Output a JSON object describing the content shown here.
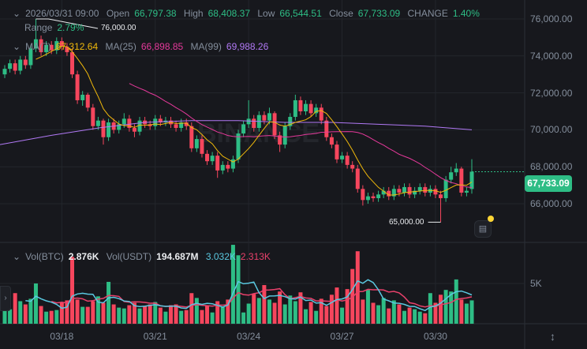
{
  "ohlc_header": {
    "datetime": "2026/03/31 09:00",
    "open_label": "Open",
    "open": "66,797.38",
    "high_label": "High",
    "high": "68,408.37",
    "low_label": "Low",
    "low": "66,544.51",
    "close_label": "Close",
    "close": "67,733.09",
    "change_label": "CHANGE",
    "change": "1.40%",
    "range_label": "Range",
    "range": "2.79%"
  },
  "ma_legend": {
    "ma7_label": "MA(7)",
    "ma7": "67,312.64",
    "ma25_label": "MA(25)",
    "ma25": "66,898.85",
    "ma99_label": "MA(99)",
    "ma99": "69,988.26"
  },
  "vol_legend": {
    "btc_label": "Vol(BTC)",
    "btc": "2.876K",
    "usdt_label": "Vol(USDT)",
    "usdt": "194.687M",
    "ma_short": "3.032K",
    "ma_long": "2.313K"
  },
  "current_price": "67,733.09",
  "high_marker": "76,000.00",
  "low_marker": "65,000.00",
  "watermark": "BINANCE",
  "colors": {
    "up": "#2ebd85",
    "down": "#f6465d",
    "ma7": "#f0b90b",
    "ma25": "#e6399b",
    "ma99": "#b179f5",
    "vol_ma_short": "#5ac8e0",
    "vol_ma_long": "#e8416b"
  },
  "chart_data": {
    "type": "candlestick",
    "interval": "4h",
    "price_ticks": [
      "76,000.00",
      "74,000.00",
      "72,000.00",
      "70,000.00",
      "68,000.00",
      "66,000.00"
    ],
    "price_tick_values": [
      76000,
      74000,
      72000,
      70000,
      68000,
      66000
    ],
    "volume_ticks": [
      "5K"
    ],
    "volume_tick_values": [
      5
    ],
    "time_ticks": [
      "03/18",
      "03/21",
      "03/24",
      "03/27",
      "03/30"
    ],
    "time_tick_candle_index": [
      11,
      29,
      47,
      65,
      83
    ],
    "ylim": [
      64000,
      77000
    ],
    "grid": true,
    "candles": [
      [
        73000,
        73500,
        72800,
        73300
      ],
      [
        73300,
        73800,
        73100,
        73600
      ],
      [
        73600,
        73800,
        73000,
        73200
      ],
      [
        73200,
        74000,
        73000,
        73800
      ],
      [
        73800,
        74000,
        73300,
        73500
      ],
      [
        73500,
        74600,
        73300,
        74400
      ],
      [
        74400,
        76000,
        74200,
        74900
      ],
      [
        74900,
        75100,
        74000,
        74200
      ],
      [
        74200,
        74800,
        74000,
        74600
      ],
      [
        74600,
        74800,
        74100,
        74300
      ],
      [
        74300,
        75000,
        74100,
        74800
      ],
      [
        74800,
        75000,
        74300,
        74500
      ],
      [
        74500,
        74700,
        74000,
        74200
      ],
      [
        74200,
        74400,
        72800,
        73000
      ],
      [
        73000,
        73200,
        71400,
        71600
      ],
      [
        71600,
        72100,
        71300,
        71900
      ],
      [
        71900,
        72000,
        71000,
        71200
      ],
      [
        71200,
        71400,
        70000,
        70200
      ],
      [
        70200,
        70700,
        70000,
        70500
      ],
      [
        70500,
        70600,
        69200,
        69600
      ],
      [
        69600,
        70600,
        69400,
        70400
      ],
      [
        70400,
        70600,
        69800,
        70000
      ],
      [
        70000,
        70500,
        69800,
        70300
      ],
      [
        70300,
        70900,
        70100,
        70600
      ],
      [
        70600,
        70800,
        69900,
        70100
      ],
      [
        70100,
        70300,
        69600,
        69900
      ],
      [
        69900,
        70700,
        69700,
        70500
      ],
      [
        70500,
        70700,
        70100,
        70300
      ],
      [
        70300,
        70500,
        70000,
        70200
      ],
      [
        70200,
        70800,
        70000,
        70600
      ],
      [
        70600,
        70800,
        70200,
        70400
      ],
      [
        70400,
        70700,
        70200,
        70500
      ],
      [
        70500,
        70700,
        70100,
        70300
      ],
      [
        70300,
        70500,
        69900,
        70100
      ],
      [
        70100,
        70600,
        69900,
        70400
      ],
      [
        70400,
        70600,
        70000,
        70200
      ],
      [
        70200,
        70400,
        68800,
        69000
      ],
      [
        69000,
        69700,
        68800,
        69500
      ],
      [
        69500,
        69700,
        68500,
        68700
      ],
      [
        68700,
        68900,
        68100,
        68300
      ],
      [
        68300,
        68800,
        68100,
        68600
      ],
      [
        68600,
        68800,
        67400,
        67800
      ],
      [
        67800,
        68300,
        67600,
        68100
      ],
      [
        68100,
        68300,
        67700,
        67900
      ],
      [
        67900,
        68600,
        67700,
        68400
      ],
      [
        68400,
        70000,
        68200,
        69800
      ],
      [
        69800,
        70500,
        69600,
        70300
      ],
      [
        70300,
        71600,
        70100,
        70600
      ],
      [
        70600,
        70800,
        69900,
        70100
      ],
      [
        70100,
        71000,
        69900,
        70800
      ],
      [
        70800,
        71000,
        70300,
        70500
      ],
      [
        70500,
        71200,
        70300,
        70900
      ],
      [
        70900,
        71000,
        69500,
        69700
      ],
      [
        69700,
        69900,
        68800,
        69200
      ],
      [
        69200,
        70400,
        69000,
        70200
      ],
      [
        70200,
        70900,
        70000,
        70700
      ],
      [
        70700,
        71900,
        70500,
        71600
      ],
      [
        71600,
        71800,
        70800,
        71000
      ],
      [
        71000,
        71600,
        70800,
        71400
      ],
      [
        71400,
        71600,
        70700,
        70900
      ],
      [
        70900,
        71400,
        70700,
        71200
      ],
      [
        71200,
        71400,
        70300,
        70500
      ],
      [
        70500,
        70700,
        69400,
        69600
      ],
      [
        69600,
        69800,
        69000,
        69200
      ],
      [
        69200,
        69400,
        68200,
        68400
      ],
      [
        68400,
        68800,
        68200,
        68600
      ],
      [
        68600,
        68800,
        67900,
        68100
      ],
      [
        68100,
        68300,
        67700,
        67900
      ],
      [
        67900,
        68100,
        66600,
        66800
      ],
      [
        66800,
        67000,
        65900,
        66200
      ],
      [
        66200,
        66600,
        66000,
        66400
      ],
      [
        66400,
        66600,
        66100,
        66300
      ],
      [
        66300,
        66700,
        66100,
        66500
      ],
      [
        66500,
        66900,
        66300,
        66700
      ],
      [
        66700,
        66900,
        66200,
        66400
      ],
      [
        66400,
        67000,
        66200,
        66800
      ],
      [
        66800,
        67000,
        66400,
        66600
      ],
      [
        66600,
        67100,
        66400,
        66900
      ],
      [
        66900,
        67100,
        66300,
        66500
      ],
      [
        66500,
        66900,
        66300,
        66700
      ],
      [
        66700,
        67100,
        66500,
        66900
      ],
      [
        66900,
        67100,
        66400,
        66600
      ],
      [
        66600,
        67000,
        66400,
        66800
      ],
      [
        66800,
        67000,
        66300,
        66500
      ],
      [
        66500,
        66700,
        65000,
        66300
      ],
      [
        66300,
        67500,
        66100,
        67300
      ],
      [
        67300,
        68000,
        67100,
        67700
      ],
      [
        67700,
        68200,
        67500,
        67900
      ],
      [
        67900,
        68000,
        66400,
        66600
      ],
      [
        66600,
        66900,
        66400,
        66700
      ],
      [
        66797.38,
        68408.37,
        66544.51,
        67733.09
      ]
    ],
    "volumes_k": [
      3.5,
      1.8,
      3.8,
      2.8,
      2.4,
      3.1,
      5.0,
      2.2,
      1.5,
      1.6,
      1.7,
      2.6,
      2.9,
      8.3,
      3.0,
      2.1,
      2.1,
      2.8,
      3.4,
      2.6,
      5.2,
      2.4,
      2.0,
      1.9,
      2.3,
      2.6,
      1.9,
      2.2,
      2.4,
      2.7,
      2.0,
      1.5,
      2.3,
      2.4,
      1.6,
      1.7,
      3.8,
      3.2,
      1.7,
      2.3,
      1.4,
      2.8,
      2.1,
      3.0,
      9.8,
      8.5,
      1.4,
      2.5,
      3.7,
      3.2,
      4.8,
      3.0,
      2.6,
      4.0,
      2.4,
      3.5,
      2.8,
      3.9,
      1.8,
      2.7,
      1.6,
      3.1,
      2.2,
      3.6,
      4.5,
      2.0,
      4.3,
      6.8,
      9.0,
      3.0,
      4.2,
      2.6,
      2.3,
      3.2,
      1.9,
      2.9,
      2.4,
      1.6,
      2.0,
      1.8,
      1.5,
      1.3,
      3.8,
      2.6,
      3.6,
      4.2,
      4.0,
      5.5,
      3.0,
      2.5,
      2.9
    ],
    "ma99_samples_every_9": [
      69200,
      69700,
      70100,
      70400,
      70500,
      70500,
      70400,
      70400,
      70300,
      70200,
      70000
    ]
  }
}
